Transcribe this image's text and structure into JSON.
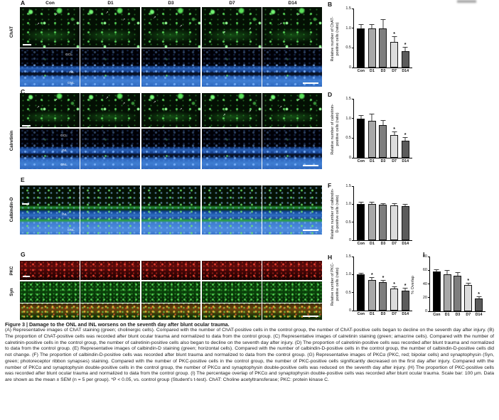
{
  "columns": [
    "Con",
    "D1",
    "D3",
    "D7",
    "D14"
  ],
  "bar_colors": [
    "#000000",
    "#a8a8a8",
    "#7e7e7e",
    "#dcdcdc",
    "#5b5b5b"
  ],
  "panels": {
    "A": {
      "label": "A",
      "stain": "ChAT"
    },
    "B": {
      "label": "B"
    },
    "C": {
      "label": "C",
      "stain": "Calretinin"
    },
    "D": {
      "label": "D"
    },
    "E": {
      "label": "E",
      "stain": "Calbindin-D"
    },
    "F": {
      "label": "F"
    },
    "G": {
      "label": "G",
      "stain_top": "PKC",
      "stain_bottom": "Syn"
    },
    "H": {
      "label": "H"
    },
    "I": {
      "label": "I"
    }
  },
  "layer_labels": {
    "A": [
      "GCL",
      "INL",
      "ONL"
    ],
    "C": [
      "GCL",
      "INL",
      "ONL"
    ],
    "E": [
      "INL",
      "ONL"
    ]
  },
  "chart_data": [
    {
      "id": "B",
      "type": "bar",
      "categories": [
        "Con",
        "D1",
        "D3",
        "D7",
        "D14"
      ],
      "values": [
        1.0,
        1.0,
        1.0,
        0.65,
        0.42
      ],
      "errors": [
        0.08,
        0.08,
        0.21,
        0.12,
        0.09
      ],
      "sig": [
        "",
        "",
        "",
        "*",
        "*"
      ],
      "ylabel": "Relative number of ChAT-\npositive cells (ratio)",
      "ylim": [
        0,
        1.5
      ],
      "yticks": [
        0,
        0.5,
        1.0,
        1.5
      ],
      "ytick_labels": [
        "0",
        "0.5",
        "1.0",
        "1.5"
      ],
      "legend_position": "none",
      "grid": false
    },
    {
      "id": "D",
      "type": "bar",
      "categories": [
        "Con",
        "D1",
        "D3",
        "D7",
        "D14"
      ],
      "values": [
        1.0,
        0.94,
        0.84,
        0.58,
        0.43
      ],
      "errors": [
        0.07,
        0.17,
        0.1,
        0.07,
        0.08
      ],
      "sig": [
        "",
        "",
        "",
        "*",
        "*"
      ],
      "ylabel": "Relative number of calretinin-\npositive cells (ratio)",
      "ylim": [
        0,
        1.5
      ],
      "yticks": [
        0,
        0.5,
        1.0,
        1.5
      ],
      "ytick_labels": [
        "0",
        "0.5",
        "1.0",
        "1.5"
      ],
      "legend_position": "none",
      "grid": false
    },
    {
      "id": "F",
      "type": "bar",
      "categories": [
        "Con",
        "D1",
        "D3",
        "D7",
        "D14"
      ],
      "values": [
        1.0,
        1.0,
        0.98,
        0.97,
        0.95
      ],
      "errors": [
        0.05,
        0.04,
        0.03,
        0.04,
        0.03
      ],
      "sig": [
        "",
        "",
        "",
        "",
        ""
      ],
      "ylabel": "Relative number of calbindin-\nD-positive cells (ratio)",
      "ylim": [
        0,
        1.5
      ],
      "yticks": [
        0,
        0.5,
        1.0,
        1.5
      ],
      "ytick_labels": [
        "0",
        "0.5",
        "1.0",
        "1.5"
      ],
      "legend_position": "none",
      "grid": false
    },
    {
      "id": "H",
      "type": "bar",
      "categories": [
        "Con",
        "D1",
        "D3",
        "D7",
        "D14"
      ],
      "values": [
        1.0,
        0.85,
        0.78,
        0.62,
        0.55
      ],
      "errors": [
        0.02,
        0.05,
        0.04,
        0.03,
        0.07
      ],
      "sig": [
        "",
        "*",
        "*",
        "*",
        "*"
      ],
      "ylabel": "Relative number of PKC-\npositive cells (ratio)",
      "ylim": [
        0,
        1.5
      ],
      "yticks": [
        0,
        0.5,
        1.0,
        1.5
      ],
      "ytick_labels": [
        "0",
        "0.5",
        "1.0",
        "1.5"
      ],
      "legend_position": "none",
      "grid": false
    },
    {
      "id": "I",
      "type": "bar",
      "categories": [
        "Con",
        "D1",
        "D3",
        "D7",
        "D14"
      ],
      "values": [
        58,
        54,
        52,
        38,
        19
      ],
      "errors": [
        2,
        5,
        4,
        3,
        2
      ],
      "sig": [
        "",
        "",
        "",
        "*",
        "*"
      ],
      "ylabel": "% Overlap",
      "ylim": [
        0,
        80
      ],
      "yticks": [
        0,
        20,
        40,
        60,
        80
      ],
      "ytick_labels": [
        "0",
        "20",
        "40",
        "60",
        "80"
      ],
      "legend_position": "none",
      "grid": false
    }
  ],
  "caption": {
    "title": "Figure 3  |  Damage to the ONL and INL worsens on the seventh day after blunt ocular trauma.",
    "body": "(A) Representative images of ChAT staining (green; cholinergic cells). Compared with the number of ChAT-positive cells in the control group, the number of ChAT-positive cells began to decline on the seventh day after injury. (B) The proportion of ChAT-positive cells was recorded after blunt ocular trauma and normalized to data from the control group. (C) Representative images of calretinin staining (green; amacrine cells). Compared with the number of calretinin-positive cells in the control group, the number of calretinin-positive cells also began to decline on the seventh day after injury. (D) The proportion of calretinin-positive cells was recorded after blunt trauma and normalized to data from the control group. (E) Representative images of calbindin-D staining (green; horizontal cells). Compared with the number of calbindin-D-positive cells in the control group, the number of calbindin-D-positive cells did not change. (F) The proportion of calbindin-D-positive cells was recorded after blunt trauma and normalized to data from the control group. (G) Representative images of PKCα (PKC, red; bipolar cells) and synaptophysin (Syn, green; photoreceptor ribbon synapses) staining. Compared with the number of PKC-positive cells in the control group, the number of PKC-positive cells significantly decreased on the first day after injury. Compared with the number of PKCα and synaptophysin double-positive cells in the control group, the number of PKCα and synaptophysin double-positive cells was reduced on the seventh day after injury. (H) The proportion of PKC-positive cells was recorded after blunt ocular trauma and normalized to data from the control group. (I) The percentage overlap of PKCα and synaptophysin double-positive cells was recorded after blunt ocular trauma. Scale bar: 100 μm. Data are shown as the mean ± SEM (n = 5 per group). *P < 0.05, vs. control group (Student’s t-test). ChAT: Choline acetyltransferase; PKC: protein kinase C."
  }
}
